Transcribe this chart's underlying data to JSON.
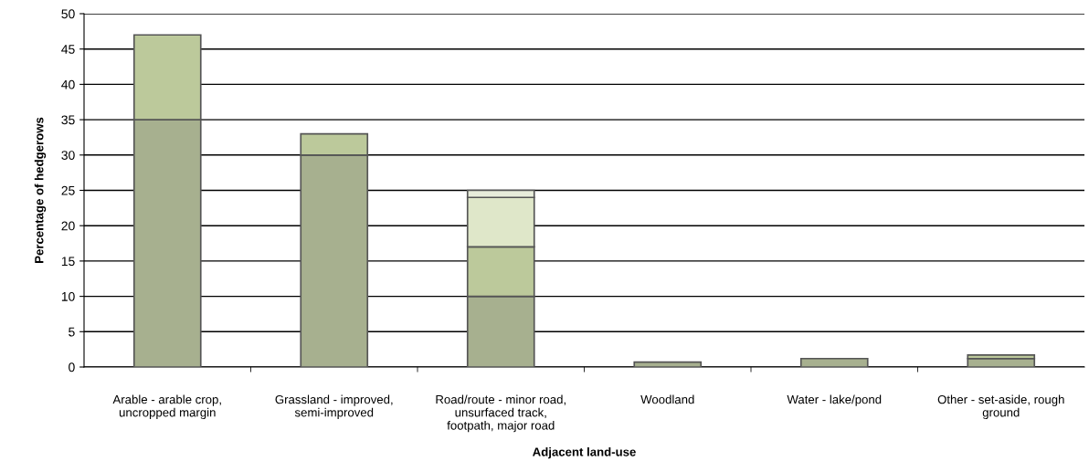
{
  "chart_data": {
    "type": "bar",
    "stacked": true,
    "xlabel": "Adjacent land-use",
    "ylabel": "Percentage of hedgerows",
    "categories": [
      "Arable - arable crop,\nuncropped margin",
      "Grassland - improved,\nsemi-improved",
      "Road/route - minor road,\nunsurfaced track,\nfootpath, major road",
      "Woodland",
      "Water - lake/pond",
      "Other - set-aside, rough\nground"
    ],
    "series": [
      {
        "color": "#a7b08f",
        "values": [
          35,
          30,
          10,
          0.7,
          1.2,
          1.2
        ]
      },
      {
        "color": "#bcc99b",
        "values": [
          12,
          3,
          7,
          0,
          0,
          0.5
        ]
      },
      {
        "color": "#dfe7c9",
        "values": [
          0,
          0,
          7,
          0,
          0,
          0
        ]
      },
      {
        "color": "#e8eddb",
        "values": [
          0,
          0,
          1,
          0,
          0,
          0
        ]
      }
    ],
    "ylim": [
      0,
      50
    ],
    "yticks": [
      0,
      5,
      10,
      15,
      20,
      25,
      30,
      35,
      40,
      45,
      50
    ],
    "grid": "y",
    "legend": false
  }
}
